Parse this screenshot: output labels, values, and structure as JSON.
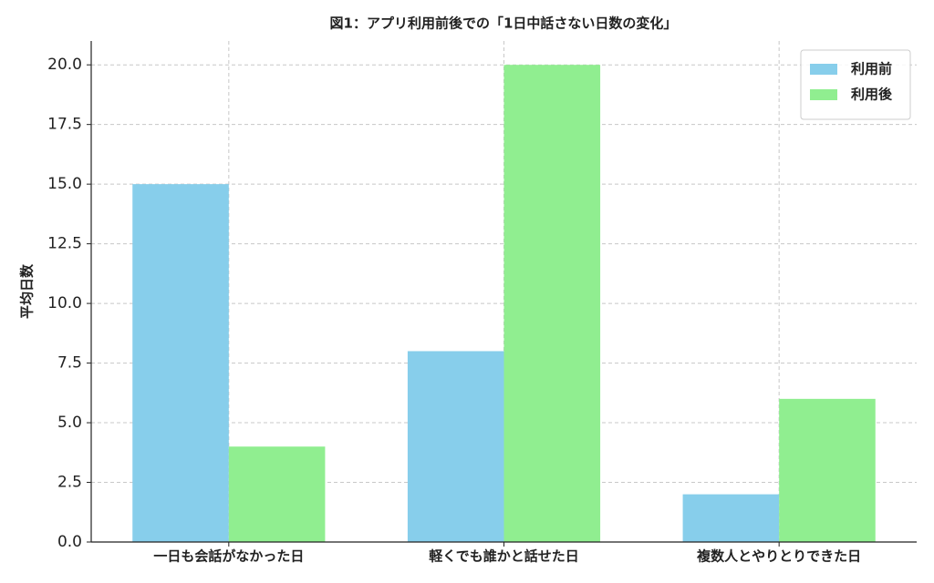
{
  "chart_data": {
    "type": "bar",
    "title": "図1：アプリ利用前後での「1日中話さない日数の変化」",
    "ylabel": "平均日数",
    "categories": [
      "一日も会話がなかった日",
      "軽くでも誰かと話せた日",
      "複数人とやりとりできた日"
    ],
    "series": [
      {
        "name": "利用前",
        "color": "#87ceeb",
        "values": [
          15,
          8,
          2
        ]
      },
      {
        "name": "利用後",
        "color": "#90ee90",
        "values": [
          4,
          20,
          6
        ]
      }
    ],
    "ylim": [
      0,
      21
    ],
    "yticks": [
      {
        "value": 0,
        "label": "0.0"
      },
      2.5,
      {
        "value": 5,
        "label": "5.0"
      },
      7.5,
      {
        "value": 10,
        "label": "10.0"
      },
      12.5,
      {
        "value": 15,
        "label": "15.0"
      },
      17.5,
      {
        "value": 20,
        "label": "20.0"
      }
    ],
    "grid": true,
    "legend": "upper right"
  }
}
